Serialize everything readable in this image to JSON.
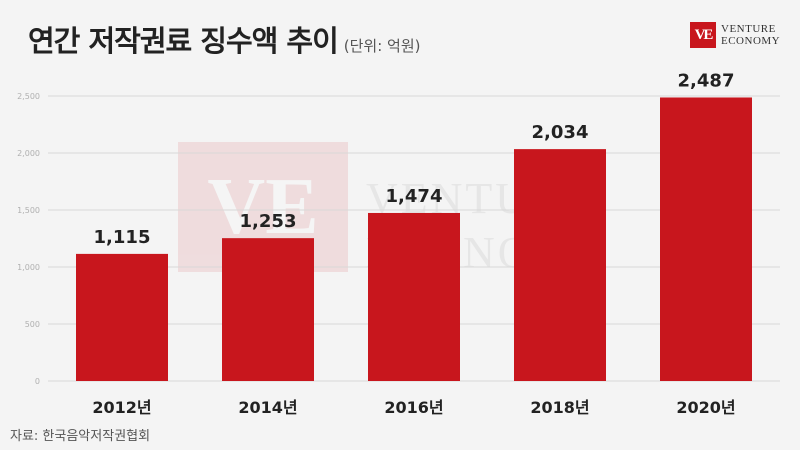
{
  "header": {
    "title": "연간 저작권료 징수액 추이",
    "unit": "(단위: 억원)"
  },
  "logo": {
    "mark": "VE",
    "line1": "VENTURE",
    "line2": "ECONOMY"
  },
  "source": "자료: 한국음악저작권협회",
  "colors": {
    "bar": "#c8161d",
    "grid": "#d8d8d8",
    "background": "#f4f4f4"
  },
  "chart_data": {
    "type": "bar",
    "title": "연간 저작권료 징수액 추이",
    "unit": "(단위: 억원)",
    "categories": [
      "2012년",
      "2014년",
      "2016년",
      "2018년",
      "2020년"
    ],
    "values": [
      1115,
      1253,
      1474,
      2034,
      2487
    ],
    "value_labels": [
      "1,115",
      "1,253",
      "1,474",
      "2,034",
      "2,487"
    ],
    "ylim": [
      0,
      2500
    ],
    "yticks": [
      0,
      500,
      1000,
      1500,
      2000,
      2500
    ],
    "ytick_labels": [
      "0",
      "500",
      "1,000",
      "1,500",
      "2,000",
      "2,500"
    ],
    "grid": true,
    "legend": "none"
  }
}
